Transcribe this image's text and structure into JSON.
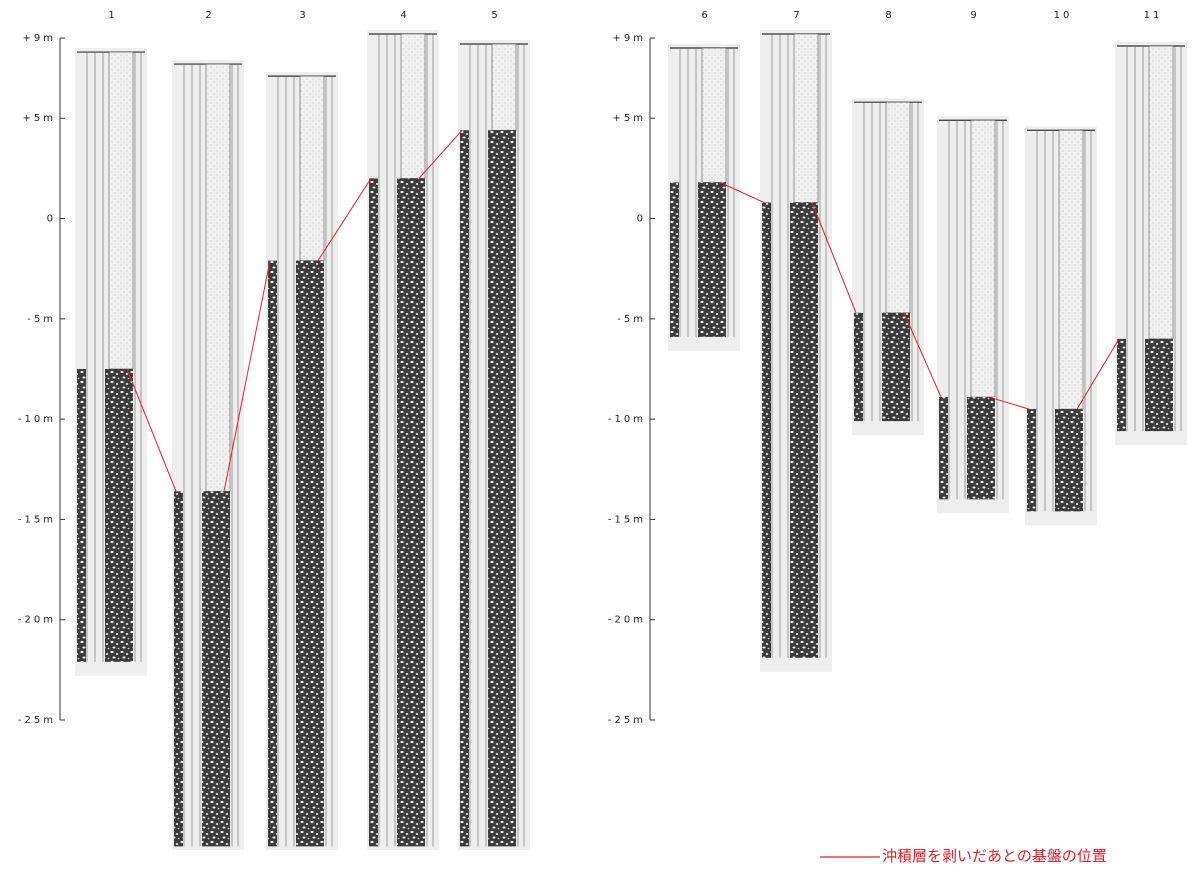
{
  "panels": [
    {
      "ylim": [
        -25,
        9
      ],
      "yticks": [
        {
          "value": 9,
          "label": "+9m"
        },
        {
          "value": 5,
          "label": "+5m"
        },
        0,
        {
          "value": -5,
          "label": "-5m"
        },
        {
          "value": -10,
          "label": "-10m"
        },
        {
          "value": -15,
          "label": "-15m"
        },
        {
          "value": -20,
          "label": "-20m"
        },
        {
          "value": -25,
          "label": "-25m"
        }
      ],
      "columns": [
        {
          "label": "1",
          "top": 8.3,
          "basement": -7.5,
          "bottom": -22.1
        },
        {
          "label": "2",
          "top": 7.7,
          "basement": -13.6,
          "bottom": -31.3
        },
        {
          "label": "3",
          "top": 7.1,
          "basement": -2.1,
          "bottom": -31.3
        },
        {
          "label": "4",
          "top": 9.2,
          "basement": 2.0,
          "bottom": -31.3
        },
        {
          "label": "5",
          "top": 8.7,
          "basement": 4.4,
          "bottom": -31.3
        }
      ]
    },
    {
      "ylim": [
        -25,
        9
      ],
      "yticks": [
        {
          "value": 9,
          "label": "+9m"
        },
        {
          "value": 5,
          "label": "+5m"
        },
        0,
        {
          "value": -5,
          "label": "-5m"
        },
        {
          "value": -10,
          "label": "-10m"
        },
        {
          "value": -15,
          "label": "-15m"
        },
        {
          "value": -20,
          "label": "-20m"
        },
        {
          "value": -25,
          "label": "-25m"
        }
      ],
      "columns": [
        {
          "label": "6",
          "top": 8.5,
          "basement": 1.8,
          "bottom": -5.9
        },
        {
          "label": "7",
          "top": 9.2,
          "basement": 0.8,
          "bottom": -21.9
        },
        {
          "label": "8",
          "top": 5.8,
          "basement": -4.7,
          "bottom": -10.1
        },
        {
          "label": "9",
          "top": 4.9,
          "basement": -8.9,
          "bottom": -14.0
        },
        {
          "label": "10",
          "top": 4.4,
          "basement": -9.5,
          "bottom": -14.6
        },
        {
          "label": "11",
          "top": 8.6,
          "basement": -6.0,
          "bottom": -10.6
        }
      ]
    }
  ],
  "legend": "沖積層を剥いだあとの基盤の位置"
}
